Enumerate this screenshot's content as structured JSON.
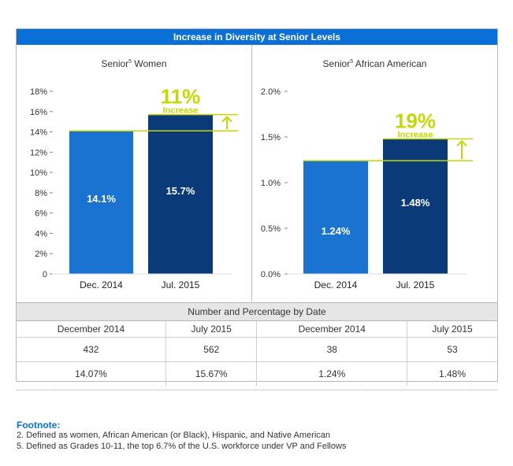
{
  "header": {
    "title": "Increase in Diversity at Senior Levels"
  },
  "colors": {
    "accent": "#0a6fd6",
    "bar_light": "#1a73d1",
    "bar_dark": "#0b3a78",
    "highlight": "#c5d800"
  },
  "chart_data": [
    {
      "type": "bar",
      "title": "Senior",
      "title_sup": "5",
      "title_rest": " Women",
      "categories": [
        "Dec. 2014",
        "Jul. 2015"
      ],
      "values": [
        14.1,
        15.7
      ],
      "value_labels": [
        "14.1%",
        "15.7%"
      ],
      "ylim": [
        0,
        18
      ],
      "yticks": [
        0,
        2,
        4,
        6,
        8,
        10,
        12,
        14,
        16,
        18
      ],
      "ytick_labels": [
        "0",
        "2%",
        "4%",
        "6%",
        "8%",
        "10%",
        "12%",
        "14%",
        "16%",
        "18%"
      ],
      "annotation": {
        "big": "11%",
        "small": "Increase"
      }
    },
    {
      "type": "bar",
      "title": "Senior",
      "title_sup": "5",
      "title_rest": " African American",
      "categories": [
        "Dec. 2014",
        "Jul. 2015"
      ],
      "values": [
        1.24,
        1.48
      ],
      "value_labels": [
        "1.24%",
        "1.48%"
      ],
      "ylim": [
        0,
        2.0
      ],
      "yticks": [
        0,
        0.5,
        1.0,
        1.5,
        2.0
      ],
      "ytick_labels": [
        "0.0%",
        "0.5%",
        "1.0%",
        "1.5%",
        "2.0%"
      ],
      "annotation": {
        "big": "19%",
        "small": "Increase"
      }
    }
  ],
  "table": {
    "title": "Number and Percentage by Date",
    "headers": [
      "December 2014",
      "July 2015",
      "December 2014",
      "July 2015"
    ],
    "rows": [
      [
        "432",
        "562",
        "38",
        "53"
      ],
      [
        "14.07%",
        "15.67%",
        "1.24%",
        "1.48%"
      ]
    ]
  },
  "footnote": {
    "title": "Footnote:",
    "lines": [
      "2. Defined as women, African American (or Black), Hispanic, and Native American",
      "5. Defined as Grades 10-11, the top 6.7% of the U.S. workforce under VP and Fellows"
    ]
  }
}
